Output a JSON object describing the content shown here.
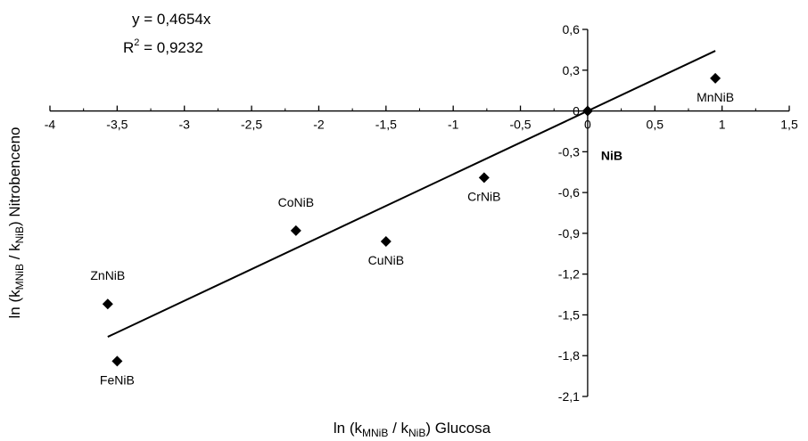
{
  "chart_data": {
    "type": "scatter",
    "xlabel": {
      "prefix": "ln (k",
      "sub1": "MNiB",
      "mid": " / k",
      "sub2": "NiB",
      "suffix": ") Glucosa"
    },
    "ylabel": {
      "prefix": "ln (k",
      "sub1": "MNiB",
      "mid": " / k",
      "sub2": "NiB",
      "suffix": ") Nitrobenceno"
    },
    "equation": "y = 0,4654x",
    "r2": {
      "base": "R",
      "exp": "2",
      "value": " = 0,9232"
    },
    "xlim": [
      -4,
      1.5
    ],
    "ylim": [
      -2.1,
      0.6
    ],
    "x_ticks": [
      {
        "v": -4,
        "label": "-4"
      },
      {
        "v": -3.5,
        "label": "-3,5"
      },
      {
        "v": -3,
        "label": "-3"
      },
      {
        "v": -2.5,
        "label": "-2,5"
      },
      {
        "v": -2,
        "label": "-2"
      },
      {
        "v": -1.5,
        "label": "-1,5"
      },
      {
        "v": -1,
        "label": "-1"
      },
      {
        "v": -0.5,
        "label": "-0,5"
      },
      {
        "v": 0,
        "label": "0"
      },
      {
        "v": 0.5,
        "label": "0,5"
      },
      {
        "v": 1,
        "label": "1"
      },
      {
        "v": 1.5,
        "label": "1,5"
      }
    ],
    "y_ticks": [
      {
        "v": 0.6,
        "label": "0,6"
      },
      {
        "v": 0.3,
        "label": "0,3"
      },
      {
        "v": 0,
        "label": "0"
      },
      {
        "v": -0.3,
        "label": "-0,3"
      },
      {
        "v": -0.6,
        "label": "-0,6"
      },
      {
        "v": -0.9,
        "label": "-0,9"
      },
      {
        "v": -1.2,
        "label": "-1,2"
      },
      {
        "v": -1.5,
        "label": "-1,5"
      },
      {
        "v": -1.8,
        "label": "-1,8"
      },
      {
        "v": -2.1,
        "label": "-2,1"
      }
    ],
    "points": [
      {
        "name": "ZnNiB",
        "x": -3.57,
        "y": -1.42,
        "label_pos": "above"
      },
      {
        "name": "FeNiB",
        "x": -3.5,
        "y": -1.84,
        "label_pos": "below"
      },
      {
        "name": "CoNiB",
        "x": -2.17,
        "y": -0.88,
        "label_pos": "above"
      },
      {
        "name": "CuNiB",
        "x": -1.5,
        "y": -0.96,
        "label_pos": "below"
      },
      {
        "name": "CrNiB",
        "x": -0.77,
        "y": -0.49,
        "label_pos": "below"
      },
      {
        "name": "NiB",
        "x": 0,
        "y": 0,
        "label_pos": "below-right"
      },
      {
        "name": "MnNiB",
        "x": 0.95,
        "y": 0.24,
        "label_pos": "below"
      }
    ],
    "trendline": {
      "slope": 0.4654,
      "x_from": -3.57,
      "x_to": 0.95
    },
    "grid": false,
    "legend": "none",
    "colors": {
      "marker": "#000000",
      "line": "#000000"
    }
  }
}
